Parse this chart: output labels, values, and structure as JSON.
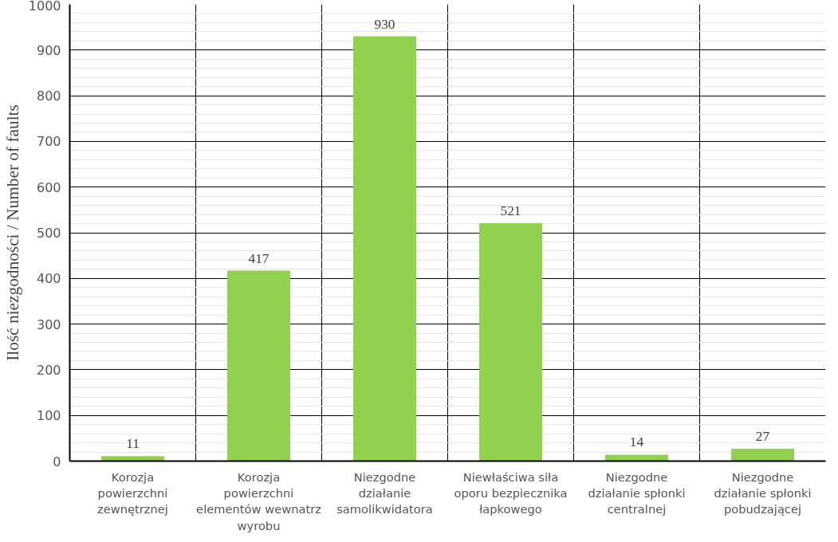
{
  "chart_data": {
    "type": "bar",
    "ylabel": "Ilość niezgodności / Number of faults",
    "categories": [
      "Korozja powierzchni zewnętrznej",
      "Korozja powierzchni elementów wewnatrz wyrobu",
      "Niezgodne działanie samolikwidatora",
      "Niewłaściwa siła oporu bezpiecznika łapkowego",
      "Niezgodne działanie spłonki centralnej",
      "Niezgodne działanie spłonki pobudzającej"
    ],
    "values": [
      11,
      417,
      930,
      521,
      14,
      27
    ],
    "color": "#92d050",
    "ylim": [
      0,
      1000
    ],
    "yticks": [
      0,
      100,
      200,
      300,
      400,
      500,
      600,
      700,
      800,
      900,
      1000
    ],
    "grid": true,
    "data_labels": true
  }
}
